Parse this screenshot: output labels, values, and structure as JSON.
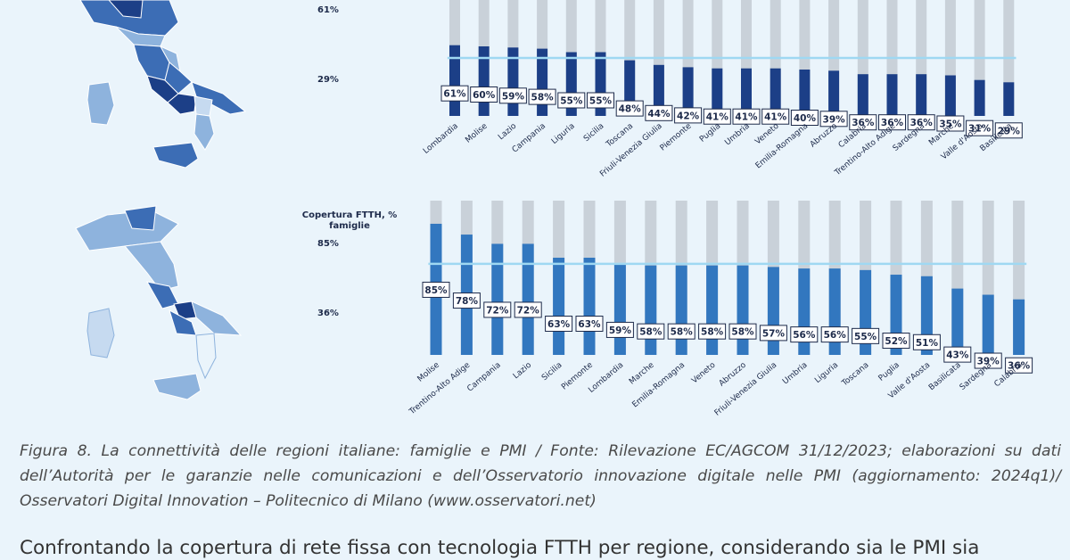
{
  "map_colors": {
    "dark": "#1c3f87",
    "mid": "#3c6db5",
    "light": "#8eb3dd",
    "pale": "#c6daf0",
    "outline": "#ffffff"
  },
  "bar_colors": {
    "chart1": "#1c3f87",
    "chart2": "#3277bf",
    "remainder": "#c9d1d9",
    "avg_line": "#9fd8f2",
    "label_border": "#1d2a4a",
    "label_bg": "#ffffff"
  },
  "panel1": {
    "legend_title": "",
    "legend_max": "61%",
    "legend_min": "29%"
  },
  "panel2": {
    "legend_title": "Copertura FTTH, % famiglie",
    "legend_max": "85%",
    "legend_min": "36%"
  },
  "chart_data": [
    {
      "type": "bar",
      "stacked_to": 100,
      "categories": [
        "Lombardia",
        "Molise",
        "Lazio",
        "Campania",
        "Liguria",
        "Sicilia",
        "Toscana",
        "Friuli-Venezia Giulia",
        "Piemonte",
        "Puglia",
        "Umbria",
        "Veneto",
        "Emilia-Romagna",
        "Abruzzo",
        "Calabria",
        "Trentino-Alto Adige",
        "Sardegna",
        "Marche",
        "Valle d'Aosta",
        "Basilicata"
      ],
      "values": [
        61,
        60,
        59,
        58,
        55,
        55,
        48,
        44,
        42,
        41,
        41,
        41,
        40,
        39,
        36,
        36,
        36,
        35,
        31,
        29
      ],
      "labels": [
        "61%",
        "60%",
        "59%",
        "58%",
        "55%",
        "55%",
        "48%",
        "44%",
        "42%",
        "41%",
        "41%",
        "41%",
        "40%",
        "39%",
        "36%",
        "36%",
        "36%",
        "35%",
        "31%",
        "29%"
      ],
      "average_line": 50,
      "ylim": [
        0,
        100
      ]
    },
    {
      "type": "bar",
      "stacked_to": 100,
      "categories": [
        "Molise",
        "Trentino-Alto Adige",
        "Campania",
        "Lazio",
        "Sicilia",
        "Piemonte",
        "Lombardia",
        "Marche",
        "Emilia-Romagna",
        "Veneto",
        "Abruzzo",
        "Friuli-Venezia Giulia",
        "Umbria",
        "Liguria",
        "Toscana",
        "Puglia",
        "Valle d'Aosta",
        "Basilicata",
        "Sardegna",
        "Calabria"
      ],
      "values": [
        85,
        78,
        72,
        72,
        63,
        63,
        59,
        58,
        58,
        58,
        58,
        57,
        56,
        56,
        55,
        52,
        51,
        43,
        39,
        36
      ],
      "labels": [
        "85%",
        "78%",
        "72%",
        "72%",
        "63%",
        "63%",
        "59%",
        "58%",
        "58%",
        "58%",
        "58%",
        "57%",
        "56%",
        "56%",
        "55%",
        "52%",
        "51%",
        "43%",
        "39%",
        "36%"
      ],
      "average_line": 59,
      "ylim": [
        0,
        100
      ]
    }
  ],
  "caption": "Figura 8. La connettività delle regioni italiane: famiglie e PMI / Fonte: Rilevazione EC/AGCOM 31/12/2023; elaborazioni su dati dell’Autorità per le garanzie nelle comunicazioni e dell’Osservatorio innovazione digitale nelle PMI (aggiornamento: 2024q1)/ Osservatori Digital Innovation – Politecnico di Milano (www.osservatori.net)",
  "body_text": "Confrontando la copertura di rete fissa con tecnologia FTTH per regione, considerando sia le PMI sia"
}
